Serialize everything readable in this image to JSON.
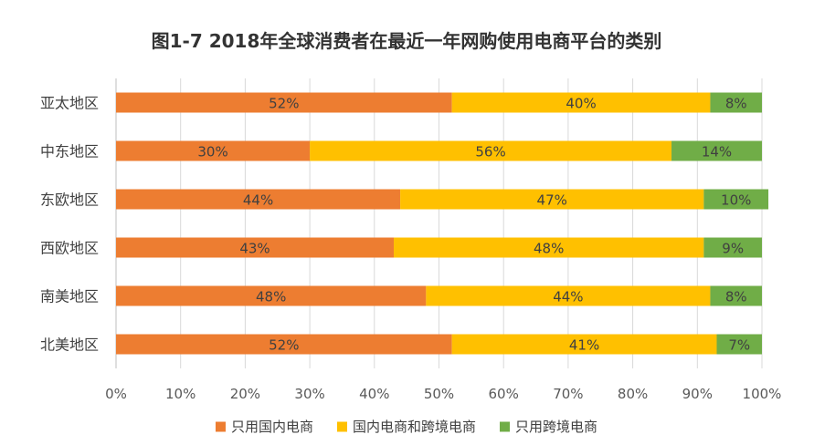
{
  "chart_data": {
    "type": "bar",
    "orientation": "horizontal",
    "stacked": true,
    "title": "图1-7 2018年全球消费者在最近一年网购使用电商平台的类别",
    "categories": [
      "亚太地区",
      "中东地区",
      "东欧地区",
      "西欧地区",
      "南美地区",
      "北美地区"
    ],
    "series": [
      {
        "name": "只用国内电商",
        "color": "#ED7D31",
        "values": [
          52,
          30,
          44,
          43,
          48,
          52
        ]
      },
      {
        "name": "国内电商和跨境电商",
        "color": "#FFC000",
        "values": [
          40,
          56,
          47,
          48,
          44,
          41
        ]
      },
      {
        "name": "只用跨境电商",
        "color": "#70AD47",
        "values": [
          8,
          14,
          10,
          9,
          8,
          7
        ]
      }
    ],
    "data_label_suffix": "%",
    "xlim": [
      0,
      100
    ],
    "xticks": [
      "0%",
      "10%",
      "20%",
      "30%",
      "40%",
      "50%",
      "60%",
      "70%",
      "80%",
      "90%",
      "100%"
    ],
    "grid": true,
    "legend_position": "bottom"
  }
}
